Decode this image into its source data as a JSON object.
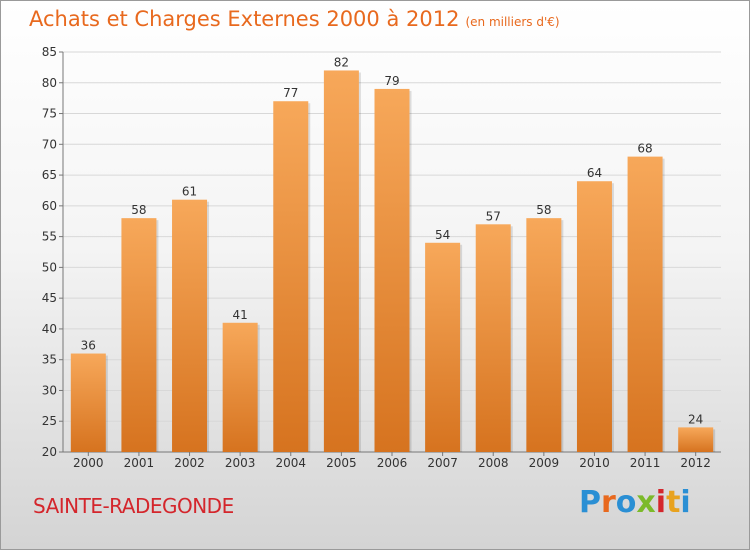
{
  "header": {
    "title": "Achats et Charges Externes 2000 à 2012",
    "unit": "(en milliers d'€)"
  },
  "footer": {
    "town": "SAINTE-RADEGONDE",
    "logo": "Proxiti"
  },
  "colors": {
    "title": "#e8691e",
    "town": "#d4262c",
    "bar_top": "#f7a85a",
    "bar_bottom": "#d6731f"
  },
  "chart_data": {
    "type": "bar",
    "title": "Achats et Charges Externes 2000 à 2012",
    "categories": [
      "2000",
      "2001",
      "2002",
      "2003",
      "2004",
      "2005",
      "2006",
      "2007",
      "2008",
      "2009",
      "2010",
      "2011",
      "2012"
    ],
    "values": [
      36,
      58,
      61,
      41,
      77,
      82,
      79,
      54,
      57,
      58,
      64,
      68,
      24
    ],
    "ylim": [
      20,
      85
    ],
    "yticks": [
      20,
      25,
      30,
      35,
      40,
      45,
      50,
      55,
      60,
      65,
      70,
      75,
      80,
      85
    ],
    "grid": true,
    "data_labels": true
  }
}
